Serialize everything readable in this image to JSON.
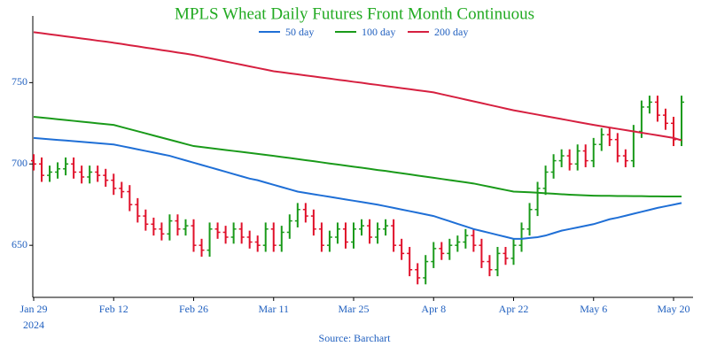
{
  "chart_data": {
    "type": "ohlc",
    "title": "MPLS Wheat Daily Futures Front Month Continuous",
    "source": "Source: Barchart",
    "year": "2024",
    "categories": [
      "Jan 29",
      null,
      null,
      null,
      null,
      null,
      null,
      null,
      null,
      null,
      "Feb 12",
      null,
      null,
      null,
      null,
      null,
      null,
      null,
      null,
      null,
      "Feb 26",
      null,
      null,
      null,
      null,
      null,
      null,
      null,
      null,
      null,
      "Mar 11",
      null,
      null,
      null,
      null,
      null,
      null,
      null,
      null,
      null,
      "Mar 25",
      null,
      null,
      null,
      null,
      null,
      null,
      null,
      null,
      null,
      "Apr 8",
      null,
      null,
      null,
      null,
      null,
      null,
      null,
      null,
      null,
      "Apr 22",
      null,
      null,
      null,
      null,
      null,
      null,
      null,
      null,
      null,
      "May 6",
      null,
      null,
      null,
      null,
      null,
      null,
      null,
      null,
      null,
      "May 20",
      null
    ],
    "ohlc": {
      "up_color": "#1a9a1a",
      "down_color": "#e0102a",
      "open": [
        702,
        700,
        693,
        695,
        697,
        700,
        695,
        692,
        695,
        693,
        690,
        685,
        683,
        675,
        668,
        663,
        660,
        657,
        665,
        660,
        662,
        650,
        647,
        660,
        658,
        655,
        660,
        655,
        652,
        650,
        660,
        650,
        658,
        665,
        672,
        668,
        660,
        650,
        655,
        660,
        652,
        660,
        662,
        655,
        660,
        662,
        650,
        645,
        635,
        630,
        640,
        648,
        645,
        650,
        652,
        656,
        650,
        640,
        635,
        645,
        642,
        650,
        660,
        672,
        685,
        695,
        702,
        705,
        700,
        708,
        702,
        712,
        718,
        715,
        705,
        702,
        720,
        735,
        738,
        730,
        725,
        715
      ],
      "high": [
        706,
        704,
        699,
        701,
        704,
        704,
        699,
        699,
        699,
        697,
        694,
        689,
        687,
        679,
        672,
        667,
        664,
        669,
        669,
        666,
        666,
        654,
        664,
        664,
        662,
        664,
        664,
        659,
        656,
        664,
        664,
        662,
        669,
        676,
        676,
        672,
        664,
        659,
        664,
        664,
        664,
        666,
        666,
        664,
        666,
        666,
        654,
        649,
        639,
        644,
        652,
        652,
        654,
        656,
        660,
        660,
        654,
        644,
        649,
        649,
        654,
        664,
        676,
        689,
        699,
        706,
        709,
        709,
        712,
        712,
        716,
        722,
        722,
        719,
        709,
        724,
        739,
        742,
        742,
        734,
        729,
        742
      ],
      "low": [
        696,
        689,
        689,
        691,
        693,
        691,
        688,
        688,
        689,
        686,
        681,
        679,
        671,
        664,
        659,
        656,
        653,
        653,
        656,
        656,
        646,
        643,
        643,
        654,
        651,
        651,
        651,
        648,
        646,
        646,
        646,
        646,
        654,
        661,
        664,
        656,
        646,
        646,
        651,
        648,
        648,
        656,
        651,
        651,
        656,
        646,
        641,
        631,
        626,
        626,
        636,
        641,
        641,
        646,
        648,
        646,
        636,
        631,
        631,
        638,
        638,
        646,
        656,
        668,
        681,
        691,
        698,
        696,
        696,
        698,
        698,
        708,
        711,
        701,
        698,
        698,
        716,
        731,
        726,
        721,
        711,
        711
      ],
      "close": [
        700,
        693,
        695,
        697,
        700,
        695,
        692,
        695,
        693,
        690,
        685,
        683,
        675,
        668,
        663,
        660,
        657,
        665,
        660,
        662,
        650,
        647,
        660,
        658,
        655,
        660,
        655,
        652,
        650,
        660,
        650,
        658,
        665,
        672,
        668,
        660,
        650,
        655,
        660,
        652,
        660,
        662,
        655,
        660,
        662,
        650,
        645,
        635,
        630,
        640,
        648,
        645,
        650,
        652,
        656,
        650,
        640,
        635,
        645,
        642,
        650,
        660,
        672,
        685,
        695,
        702,
        705,
        700,
        708,
        702,
        712,
        718,
        715,
        705,
        702,
        720,
        735,
        738,
        730,
        725,
        715,
        738
      ]
    },
    "series": [
      {
        "name": "50 day",
        "color": "#1f6fd6",
        "values": [
          716,
          715.6,
          715.2,
          714.8,
          714.4,
          714,
          713.6,
          713.2,
          712.8,
          712.4,
          712,
          711,
          710,
          709,
          708,
          707,
          706,
          705,
          703.6,
          702.2,
          700.8,
          699.4,
          698,
          696.6,
          695.2,
          693.8,
          692.4,
          691,
          690,
          688.6,
          687.2,
          685.8,
          684.4,
          683,
          682.2,
          681.4,
          680.6,
          679.8,
          679,
          678.2,
          677.4,
          676.6,
          675.8,
          675,
          674,
          673,
          672,
          671,
          670,
          669,
          668,
          666.4,
          664.8,
          663.2,
          661.6,
          660,
          658.8,
          657.6,
          656.4,
          655.2,
          654,
          654,
          654.5,
          655,
          656,
          657.5,
          659,
          660,
          661,
          662,
          663,
          664.5,
          666,
          667,
          668.2,
          669.4,
          670.6,
          671.8,
          673,
          674,
          675,
          676
        ]
      },
      {
        "name": "100 day",
        "color": "#1a9a1a",
        "values": [
          729,
          728.5,
          728,
          727.5,
          727,
          726.5,
          726,
          725.5,
          725,
          724.5,
          724,
          722.7,
          721.4,
          720.1,
          718.8,
          717.5,
          716.2,
          714.9,
          713.6,
          712.3,
          711,
          710.4,
          709.8,
          709.2,
          708.6,
          708,
          707.4,
          706.8,
          706.2,
          705.6,
          705,
          704.3,
          703.7,
          703,
          702.3,
          701.7,
          701,
          700.3,
          699.7,
          699,
          698.3,
          697.7,
          697,
          696.3,
          695.7,
          695,
          694.3,
          693.6,
          692.9,
          692.2,
          691.5,
          690.8,
          690.1,
          689.4,
          688.7,
          688,
          687,
          686,
          685,
          684,
          683,
          682.8,
          682.6,
          682.3,
          682,
          681.7,
          681.4,
          681.1,
          680.9,
          680.7,
          680.5,
          680.4,
          680.4,
          680.3,
          680.3,
          680.2,
          680.2,
          680.1,
          680.1,
          680,
          680,
          680
        ]
      },
      {
        "name": "200 day",
        "color": "#d62040",
        "values": [
          781,
          780.4,
          779.7,
          779.1,
          778.4,
          777.8,
          777.1,
          776.5,
          775.8,
          775.2,
          774.5,
          773.8,
          773,
          772.3,
          771.5,
          770.8,
          770,
          769.3,
          768.5,
          767.8,
          767,
          766,
          765,
          764,
          763,
          762,
          761,
          760,
          759,
          758,
          757,
          756.4,
          755.7,
          755.1,
          754.4,
          753.8,
          753.1,
          752.5,
          751.8,
          751.2,
          750.5,
          749.9,
          749.2,
          748.6,
          747.9,
          747.3,
          746.6,
          746,
          745.3,
          744.7,
          744,
          742.9,
          741.8,
          740.7,
          739.6,
          738.5,
          737.4,
          736.3,
          735.2,
          734.1,
          733,
          732.1,
          731.2,
          730.3,
          729.4,
          728.5,
          727.6,
          726.7,
          725.8,
          724.9,
          724,
          723.2,
          722.4,
          721.6,
          720.8,
          720,
          719.2,
          718.4,
          717.6,
          716.8,
          716,
          714.5
        ]
      }
    ],
    "ylim": [
      618,
      791
    ],
    "yticks": [
      650,
      700,
      750
    ],
    "grid": false,
    "legend": "top"
  }
}
